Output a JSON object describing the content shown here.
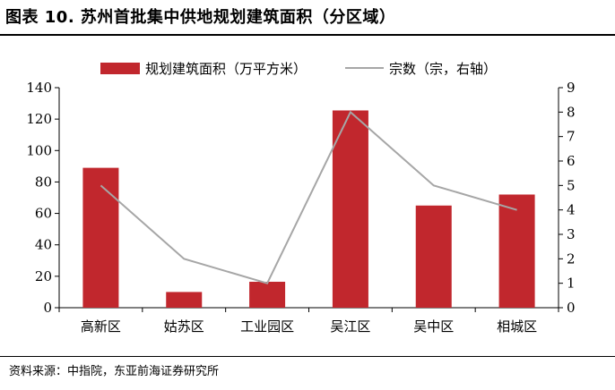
{
  "figure": {
    "title": "图表 10. 苏州首批集中供地规划建筑面积（分区域）",
    "source": "资料来源：中指院，东亚前海证券研究所"
  },
  "colors": {
    "bar": "#c1272d",
    "line": "#a6a6a6",
    "axis": "#000000"
  },
  "chart_data": {
    "type": "bar",
    "title": "图表 10. 苏州首批集中供地规划建筑面积（分区域）",
    "categories": [
      "高新区",
      "姑苏区",
      "工业园区",
      "吴江区",
      "吴中区",
      "相城区"
    ],
    "series": [
      {
        "name": "规划建筑面积（万平方米）",
        "type": "bar",
        "axis": "left",
        "values": [
          89,
          10,
          16.5,
          125.5,
          65,
          72
        ]
      },
      {
        "name": "宗数（宗，右轴）",
        "type": "line",
        "axis": "right",
        "values": [
          5,
          2,
          1,
          8,
          5,
          4
        ]
      }
    ],
    "y_left": {
      "min": 0,
      "max": 140,
      "ticks": [
        0,
        20,
        40,
        60,
        80,
        100,
        120,
        140
      ]
    },
    "y_right": {
      "min": 0,
      "max": 9,
      "ticks": [
        0,
        1,
        2,
        3,
        4,
        5,
        6,
        7,
        8,
        9
      ]
    },
    "legend": {
      "position": "top"
    },
    "grid": false
  }
}
